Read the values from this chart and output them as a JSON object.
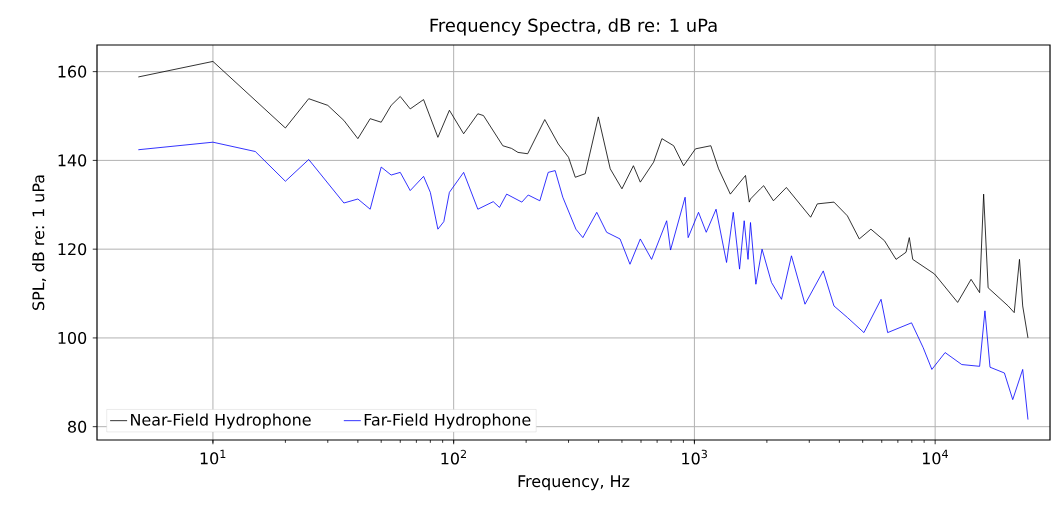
{
  "chart_data": {
    "type": "line",
    "title": "Frequency Spectra, dB re: 1 uPa",
    "xlabel": "Frequency, Hz",
    "ylabel": "SPL, dB re: 1 uPa",
    "log": "x",
    "grid": true,
    "legend": "bottom left",
    "marker": "none",
    "line_style": "solid",
    "xlim": [
      3.3,
      30000
    ],
    "ylim": [
      77,
      166
    ],
    "xticks": [
      {
        "value": 10,
        "label": "10$^{1}$"
      },
      {
        "value": 100,
        "label": "10$^{2}$"
      },
      {
        "value": 1000,
        "label": "10$^{3}$"
      },
      {
        "value": 10000,
        "label": "10$^{4}$"
      }
    ],
    "yticks": [
      80,
      100,
      120,
      140,
      160
    ],
    "series": [
      {
        "name": "Near-Field Hydrophone",
        "color": "#000000",
        "x": [
          4.9,
          10,
          20,
          25,
          30,
          35,
          40,
          45,
          50,
          55,
          60,
          66,
          75,
          86,
          96,
          110,
          126,
          133,
          160,
          174,
          185,
          203,
          239,
          272,
          300,
          320,
          352,
          399,
          447,
          500,
          558,
          596,
          677,
          733,
          820,
          902,
          1010,
          1170,
          1260,
          1410,
          1630,
          1690,
          1710,
          1880,
          1940,
          2130,
          2410,
          3040,
          3240,
          3800,
          4320,
          4840,
          5410,
          6160,
          6880,
          7570,
          7810,
          8070,
          9940,
          12400,
          14100,
          15300,
          15900,
          16600,
          20100,
          21300,
          22400,
          23100,
          24300
        ],
        "values": [
          158.8,
          162.3,
          147.3,
          153.9,
          152.4,
          149,
          144.9,
          149.4,
          148.6,
          152.4,
          154.4,
          151.6,
          153.7,
          145.2,
          151.3,
          146,
          150.5,
          150.1,
          143.3,
          142.7,
          141.8,
          141.5,
          149.2,
          143.7,
          140.7,
          136.2,
          137,
          149.8,
          138.1,
          133.6,
          138.8,
          135.1,
          139.6,
          144.9,
          143.3,
          138.8,
          142.6,
          143.3,
          138.1,
          132.4,
          136.6,
          130.6,
          131.3,
          133.6,
          134.3,
          130.9,
          133.9,
          127.2,
          130.2,
          130.6,
          127.5,
          122.3,
          124.5,
          121.9,
          117.7,
          119.3,
          122.6,
          117.7,
          114.4,
          108,
          113.2,
          110.2,
          132.4,
          111.3,
          107.2,
          105.7,
          117.7,
          107.2,
          100
        ]
      },
      {
        "name": "Far-Field Hydrophone",
        "color": "#0000ff",
        "x": [
          4.9,
          10,
          15,
          20,
          25,
          35,
          40,
          45,
          50,
          55,
          60,
          66,
          75,
          80,
          86,
          91,
          96,
          110,
          126,
          146,
          155,
          166,
          192,
          204,
          228,
          247,
          264,
          284,
          322,
          344,
          393,
          432,
          491,
          540,
          596,
          664,
          767,
          796,
          915,
          942,
          1040,
          1120,
          1230,
          1360,
          1450,
          1540,
          1610,
          1670,
          1710,
          1800,
          1910,
          2090,
          2300,
          2530,
          2880,
          3430,
          3800,
          4320,
          5060,
          5960,
          6350,
          7980,
          8920,
          9690,
          11000,
          12900,
          15300,
          16100,
          16900,
          19400,
          21000,
          23100,
          24300
        ],
        "values": [
          142.4,
          144.1,
          142,
          135.3,
          140.2,
          130.4,
          131.3,
          129,
          138.5,
          136.7,
          137.3,
          133.2,
          136.4,
          132.8,
          124.5,
          126.2,
          132.8,
          137.3,
          129,
          130.7,
          129.4,
          132.4,
          130.6,
          132.2,
          130.9,
          137.3,
          137.7,
          131.7,
          124.5,
          122.6,
          128.3,
          123.8,
          122.3,
          116.6,
          122.3,
          117.7,
          126.4,
          119.8,
          131.7,
          122.6,
          128.3,
          123.8,
          129,
          117,
          128.3,
          115.5,
          126.4,
          117.7,
          126,
          112.1,
          120,
          112.5,
          108.7,
          118.5,
          107.6,
          115.1,
          107.2,
          104.6,
          101.2,
          108.7,
          101.2,
          103.4,
          97.8,
          92.9,
          96.7,
          94,
          93.6,
          106.1,
          93.4,
          92.1,
          86.1,
          92.9,
          81.6
        ]
      }
    ]
  }
}
